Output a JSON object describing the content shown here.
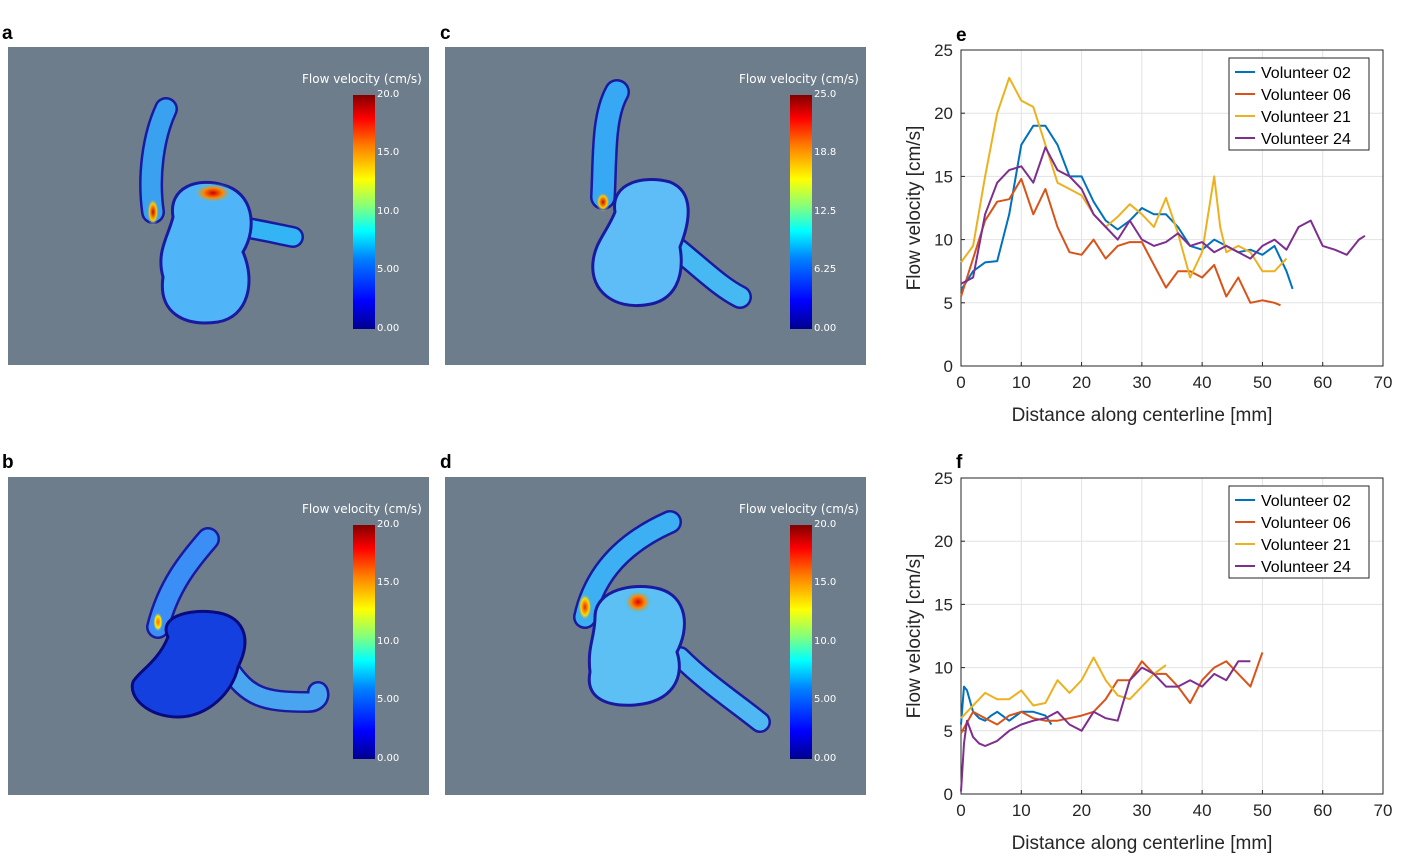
{
  "panel_labels": {
    "a": "a",
    "b": "b",
    "c": "c",
    "d": "d",
    "e": "e",
    "f": "f"
  },
  "maps": [
    {
      "id": "a",
      "colorbar_title": "Flow velocity (cm/s)",
      "ticks": [
        "20.0",
        "15.0",
        "10.0",
        "5.00",
        "0.00"
      ]
    },
    {
      "id": "c",
      "colorbar_title": "Flow velocity (cm/s)",
      "ticks": [
        "25.0",
        "18.8",
        "12.5",
        "6.25",
        "0.00"
      ]
    },
    {
      "id": "b",
      "colorbar_title": "Flow velocity (cm/s)",
      "ticks": [
        "20.0",
        "15.0",
        "10.0",
        "5.00",
        "0.00"
      ]
    },
    {
      "id": "d",
      "colorbar_title": "Flow velocity (cm/s)",
      "ticks": [
        "20.0",
        "15.0",
        "10.0",
        "5.00",
        "0.00"
      ]
    }
  ],
  "chart_data": [
    {
      "id": "e",
      "type": "line",
      "xlabel": "Distance along centerline [mm]",
      "ylabel": "Flow velocity [cm/s]",
      "xlim": [
        0,
        70
      ],
      "ylim": [
        0,
        25
      ],
      "xticks": [
        0,
        10,
        20,
        30,
        40,
        50,
        60,
        70
      ],
      "yticks": [
        0,
        5,
        10,
        15,
        20,
        25
      ],
      "grid": true,
      "legend_position": "top-right",
      "series": [
        {
          "name": "Volunteer 02",
          "color": "#0072bd",
          "x": [
            0,
            2,
            4,
            6,
            8,
            10,
            12,
            14,
            16,
            18,
            20,
            22,
            24,
            26,
            28,
            30,
            32,
            34,
            36,
            38,
            40,
            42,
            44,
            46,
            48,
            50,
            52,
            54,
            55
          ],
          "y": [
            6.0,
            7.5,
            8.2,
            8.3,
            12.0,
            17.5,
            19.0,
            19.0,
            17.5,
            15.0,
            15.0,
            13.0,
            11.5,
            10.8,
            11.5,
            12.5,
            12.0,
            12.0,
            11.0,
            9.5,
            9.2,
            10.0,
            9.5,
            9.0,
            9.2,
            8.8,
            9.5,
            7.5,
            6.1
          ]
        },
        {
          "name": "Volunteer 06",
          "color": "#d95319",
          "x": [
            0,
            2,
            4,
            6,
            8,
            10,
            12,
            14,
            16,
            18,
            20,
            22,
            24,
            26,
            28,
            30,
            32,
            34,
            36,
            38,
            40,
            42,
            44,
            46,
            48,
            50,
            52,
            53
          ],
          "y": [
            5.5,
            8.5,
            11.5,
            13.0,
            13.2,
            14.8,
            12.0,
            14.0,
            11.0,
            9.0,
            8.8,
            10.0,
            8.5,
            9.5,
            9.8,
            9.8,
            8.0,
            6.2,
            7.5,
            7.5,
            7.0,
            8.0,
            5.5,
            7.0,
            5.0,
            5.2,
            5.0,
            4.8
          ]
        },
        {
          "name": "Volunteer 21",
          "color": "#edb120",
          "x": [
            0,
            2,
            4,
            6,
            8,
            10,
            12,
            14,
            16,
            18,
            20,
            22,
            24,
            26,
            28,
            30,
            32,
            34,
            36,
            38,
            40,
            42,
            43,
            44,
            46,
            48,
            50,
            52,
            54
          ],
          "y": [
            8.2,
            9.5,
            15.0,
            20.0,
            22.8,
            21.0,
            20.5,
            17.5,
            14.5,
            14.0,
            13.5,
            12.0,
            11.0,
            11.8,
            12.8,
            12.0,
            11.0,
            13.3,
            10.5,
            7.0,
            9.0,
            15.0,
            11.0,
            9.0,
            9.5,
            9.0,
            7.5,
            7.5,
            8.5
          ]
        },
        {
          "name": "Volunteer 24",
          "color": "#7e2f8e",
          "x": [
            0,
            2,
            4,
            6,
            8,
            10,
            12,
            14,
            16,
            18,
            20,
            22,
            24,
            26,
            28,
            30,
            32,
            34,
            36,
            38,
            40,
            42,
            44,
            46,
            48,
            50,
            52,
            54,
            56,
            58,
            60,
            62,
            64,
            66,
            67
          ],
          "y": [
            6.5,
            7.0,
            12.0,
            14.5,
            15.5,
            15.8,
            14.5,
            17.3,
            15.5,
            15.0,
            14.0,
            12.0,
            11.0,
            10.0,
            11.5,
            10.0,
            9.5,
            9.8,
            10.5,
            9.5,
            9.8,
            9.0,
            9.5,
            9.0,
            8.5,
            9.5,
            10.0,
            9.2,
            11.0,
            11.5,
            9.5,
            9.2,
            8.8,
            10.0,
            10.3
          ]
        }
      ]
    },
    {
      "id": "f",
      "type": "line",
      "xlabel": "Distance along centerline [mm]",
      "ylabel": "Flow velocity [cm/s]",
      "xlim": [
        0,
        70
      ],
      "ylim": [
        0,
        25
      ],
      "xticks": [
        0,
        10,
        20,
        30,
        40,
        50,
        60,
        70
      ],
      "yticks": [
        0,
        5,
        10,
        15,
        20,
        25
      ],
      "grid": true,
      "legend_position": "top-right",
      "series": [
        {
          "name": "Volunteer 02",
          "color": "#0072bd",
          "x": [
            0,
            0.5,
            1,
            2,
            3,
            4,
            5,
            6,
            8,
            10,
            12,
            14,
            15
          ],
          "y": [
            5.5,
            8.5,
            8.2,
            6.5,
            6.0,
            5.8,
            6.2,
            6.5,
            5.8,
            6.5,
            6.5,
            6.2,
            5.5
          ]
        },
        {
          "name": "Volunteer 06",
          "color": "#d95319",
          "x": [
            0,
            2,
            4,
            6,
            8,
            10,
            12,
            14,
            16,
            18,
            20,
            22,
            24,
            26,
            28,
            30,
            32,
            34,
            36,
            38,
            40,
            42,
            44,
            46,
            48,
            50
          ],
          "y": [
            4.8,
            6.5,
            6.0,
            5.5,
            6.2,
            6.5,
            6.0,
            5.8,
            5.8,
            6.0,
            6.2,
            6.5,
            7.5,
            9.0,
            9.0,
            10.5,
            9.5,
            9.5,
            8.5,
            7.2,
            9.0,
            10.0,
            10.5,
            9.5,
            8.5,
            11.2
          ]
        },
        {
          "name": "Volunteer 21",
          "color": "#edb120",
          "x": [
            0,
            2,
            4,
            6,
            8,
            10,
            12,
            14,
            16,
            18,
            20,
            22,
            24,
            26,
            28,
            30,
            32,
            34
          ],
          "y": [
            6.0,
            7.0,
            8.0,
            7.5,
            7.5,
            8.2,
            7.0,
            7.2,
            9.0,
            8.0,
            9.0,
            10.8,
            9.0,
            7.8,
            7.5,
            8.5,
            9.5,
            10.2
          ]
        },
        {
          "name": "Volunteer 24",
          "color": "#7e2f8e",
          "x": [
            0,
            0.5,
            1,
            2,
            3,
            4,
            6,
            8,
            10,
            12,
            14,
            16,
            18,
            20,
            22,
            24,
            26,
            28,
            30,
            32,
            34,
            36,
            38,
            40,
            42,
            44,
            46,
            48
          ],
          "y": [
            0.2,
            4.0,
            5.8,
            4.5,
            4.0,
            3.8,
            4.2,
            5.0,
            5.5,
            5.8,
            6.0,
            6.5,
            5.5,
            5.0,
            6.5,
            6.0,
            5.8,
            9.0,
            10.0,
            9.5,
            8.5,
            8.5,
            9.0,
            8.5,
            9.5,
            9.0,
            10.5,
            10.5
          ]
        }
      ]
    }
  ]
}
